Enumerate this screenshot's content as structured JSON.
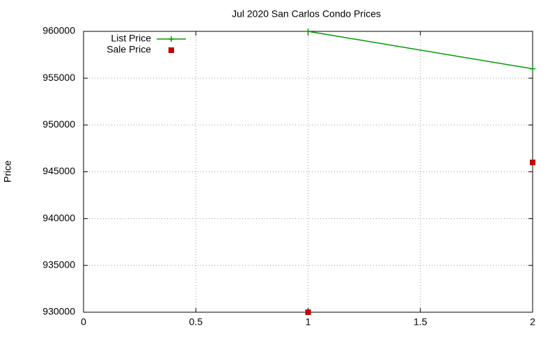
{
  "chart_data": {
    "type": "line",
    "title": "Jul 2020 San Carlos Condo Prices",
    "y_label": "Price",
    "x": [
      1,
      2
    ],
    "series": [
      {
        "name": "List Price",
        "color": "#009900",
        "style": "linespoints",
        "marker": "plus",
        "values": [
          960000,
          956000
        ]
      },
      {
        "name": "Sale Price",
        "color": "#c00000",
        "style": "points",
        "marker": "square",
        "values": [
          930000,
          946000
        ]
      }
    ],
    "xlim": [
      0,
      2
    ],
    "xticks": [
      0,
      0.5,
      1,
      1.5,
      2
    ],
    "ylim": [
      930000,
      960000
    ],
    "yticks": [
      930000,
      935000,
      940000,
      945000,
      950000,
      955000,
      960000
    ],
    "grid": true,
    "legend": "top-left"
  }
}
